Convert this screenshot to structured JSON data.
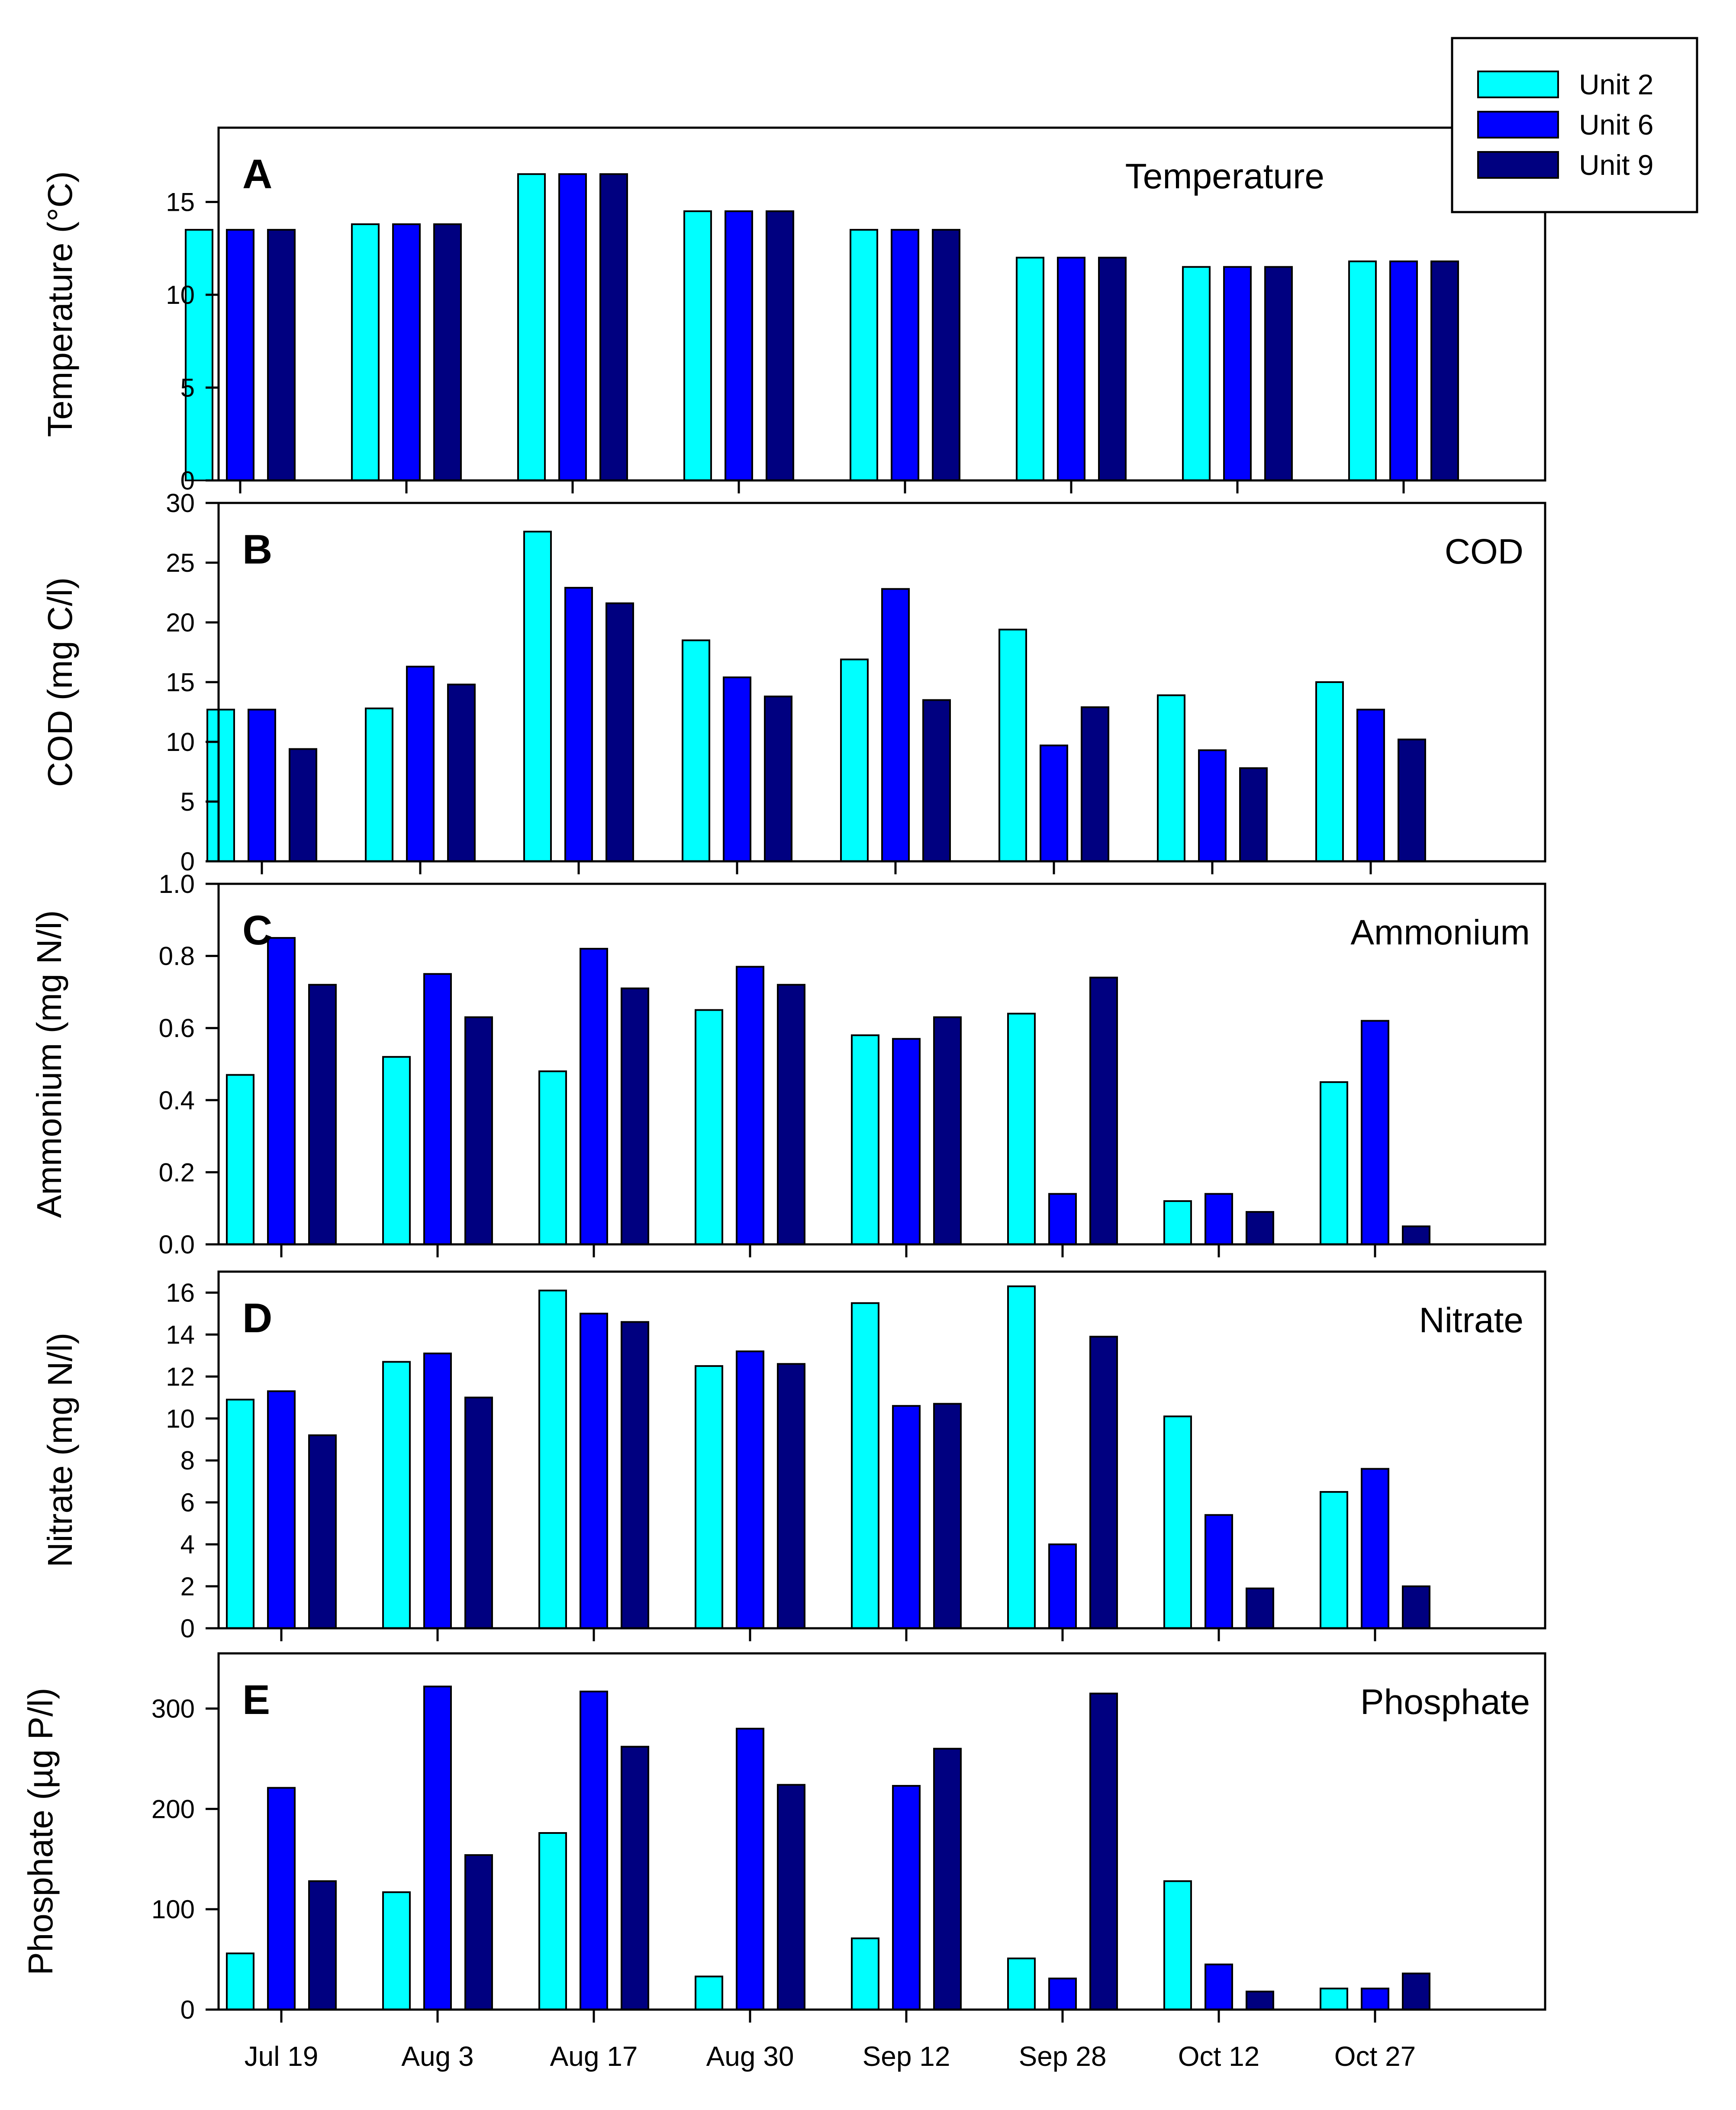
{
  "colors": {
    "unit2": "#00FFFF",
    "unit6": "#0000FF",
    "unit9": "#000080"
  },
  "chart_data": {
    "type": "bar",
    "categories": [
      "Jul 19",
      "Aug 3",
      "Aug 17",
      "Aug 30",
      "Sep 12",
      "Sep 28",
      "Oct 12",
      "Oct 27"
    ],
    "legend": {
      "placement": "top-right",
      "entries": [
        "Unit 2",
        "Unit 6",
        "Unit 9"
      ]
    },
    "panels": [
      {
        "letter": "A",
        "title": "Temperature",
        "ylabel": "Temperature (°C)",
        "ylim": [
          0,
          19
        ],
        "yticks": [
          0,
          5,
          10,
          15
        ],
        "tick_labels": [
          "0",
          "5",
          "10",
          "15"
        ],
        "series": [
          {
            "name": "Unit 2",
            "values": [
              13.5,
              13.8,
              16.5,
              14.5,
              13.5,
              12.0,
              11.5,
              11.8
            ]
          },
          {
            "name": "Unit 6",
            "values": [
              13.5,
              13.8,
              16.5,
              14.5,
              13.5,
              12.0,
              11.5,
              11.8
            ]
          },
          {
            "name": "Unit 9",
            "values": [
              13.5,
              13.8,
              16.5,
              14.5,
              13.5,
              12.0,
              11.5,
              11.8
            ]
          }
        ]
      },
      {
        "letter": "B",
        "title": "COD",
        "ylabel": "COD (mg C/l)",
        "ylim": [
          0,
          30
        ],
        "yticks": [
          0,
          5,
          10,
          15,
          20,
          25,
          30
        ],
        "tick_labels": [
          "0",
          "5",
          "10",
          "15",
          "20",
          "25",
          "30"
        ],
        "series": [
          {
            "name": "Unit 2",
            "values": [
              12.7,
              12.8,
              27.6,
              18.5,
              16.9,
              19.4,
              13.9,
              15.0
            ]
          },
          {
            "name": "Unit 6",
            "values": [
              12.7,
              16.3,
              22.9,
              15.4,
              22.8,
              9.7,
              9.3,
              12.7
            ]
          },
          {
            "name": "Unit 9",
            "values": [
              9.4,
              14.8,
              21.6,
              13.8,
              13.5,
              12.9,
              7.8,
              10.2
            ]
          }
        ]
      },
      {
        "letter": "C",
        "title": "Ammonium",
        "ylabel": "Ammonium (mg N/l)",
        "ylim": [
          0,
          1.0
        ],
        "yticks": [
          0,
          0.2,
          0.4,
          0.6,
          0.8,
          1.0
        ],
        "tick_labels": [
          "0.0",
          "0.2",
          "0.4",
          "0.6",
          "0.8",
          "1.0"
        ],
        "series": [
          {
            "name": "Unit 2",
            "values": [
              0.47,
              0.52,
              0.48,
              0.65,
              0.58,
              0.64,
              0.12,
              0.45
            ]
          },
          {
            "name": "Unit 6",
            "values": [
              0.85,
              0.75,
              0.82,
              0.77,
              0.57,
              0.14,
              0.14,
              0.62
            ]
          },
          {
            "name": "Unit 9",
            "values": [
              0.72,
              0.63,
              0.71,
              0.72,
              0.63,
              0.74,
              0.09,
              0.05
            ]
          }
        ]
      },
      {
        "letter": "D",
        "title": "Nitrate",
        "ylabel": "Nitrate (mg N/l)",
        "ylim": [
          0,
          17
        ],
        "yticks": [
          0,
          2,
          4,
          6,
          8,
          10,
          12,
          14,
          16
        ],
        "tick_labels": [
          "0",
          "2",
          "4",
          "6",
          "8",
          "10",
          "12",
          "14",
          "16"
        ],
        "series": [
          {
            "name": "Unit 2",
            "values": [
              10.9,
              12.7,
              16.1,
              12.5,
              15.5,
              16.3,
              10.1,
              6.5
            ]
          },
          {
            "name": "Unit 6",
            "values": [
              11.3,
              13.1,
              15.0,
              13.2,
              10.6,
              4.0,
              5.4,
              7.6
            ]
          },
          {
            "name": "Unit 9",
            "values": [
              9.2,
              11.0,
              14.6,
              12.6,
              10.7,
              13.9,
              1.9,
              2.0
            ]
          }
        ]
      },
      {
        "letter": "E",
        "title": "Phosphate",
        "ylabel": "Phosphate (µg P/l)",
        "ylim": [
          0,
          355
        ],
        "yticks": [
          0,
          100,
          200,
          300
        ],
        "tick_labels": [
          "0",
          "100",
          "200",
          "300"
        ],
        "series": [
          {
            "name": "Unit 2",
            "values": [
              56,
              117,
              176,
              33,
              71,
              51,
              128,
              21
            ]
          },
          {
            "name": "Unit 6",
            "values": [
              221,
              322,
              317,
              280,
              223,
              31,
              45,
              21
            ]
          },
          {
            "name": "Unit 9",
            "values": [
              128,
              154,
              262,
              224,
              260,
              315,
              18,
              36
            ]
          }
        ]
      }
    ]
  }
}
